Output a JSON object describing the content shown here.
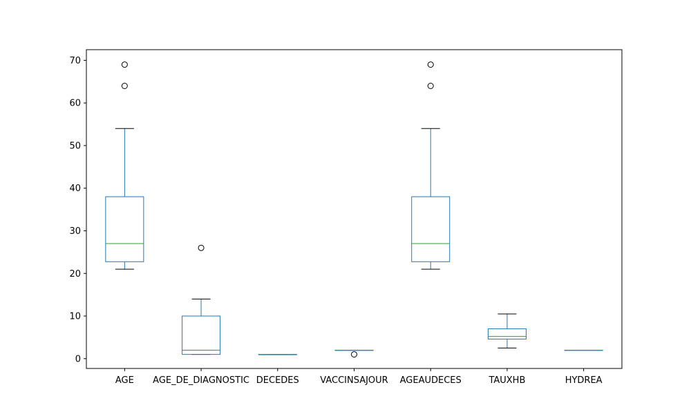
{
  "chart_data": {
    "type": "box",
    "title": "",
    "xlabel": "",
    "ylabel": "",
    "ylim": [
      -2.3,
      72.5
    ],
    "yticks": [
      0,
      10,
      20,
      30,
      40,
      50,
      60,
      70
    ],
    "grid": false,
    "categories": [
      "AGE",
      "AGE_DE_DIAGNOSTIC",
      "DECEDES",
      "VACCINSAJOUR",
      "AGEAUDECES",
      "TAUXHB",
      "HYDREA"
    ],
    "boxes": [
      {
        "whisker_low": 21,
        "q1": 22.75,
        "median": 27,
        "q3": 38,
        "whisker_high": 54,
        "outliers": [
          64,
          69
        ]
      },
      {
        "whisker_low": 1,
        "q1": 1,
        "median": 2,
        "q3": 10,
        "whisker_high": 14,
        "outliers": [
          26
        ]
      },
      {
        "whisker_low": 1,
        "q1": 1,
        "median": 1,
        "q3": 1,
        "whisker_high": 1,
        "outliers": []
      },
      {
        "whisker_low": 2,
        "q1": 2,
        "median": 2,
        "q3": 2,
        "whisker_high": 2,
        "outliers": [
          1
        ]
      },
      {
        "whisker_low": 21,
        "q1": 22.75,
        "median": 27,
        "q3": 38,
        "whisker_high": 54,
        "outliers": [
          64,
          69
        ]
      },
      {
        "whisker_low": 2.5,
        "q1": 4.6,
        "median": 5.2,
        "q3": 7,
        "whisker_high": 10.5,
        "outliers": []
      },
      {
        "whisker_low": 2,
        "q1": 2,
        "median": 2,
        "q3": 2,
        "whisker_high": 2,
        "outliers": []
      }
    ],
    "colors": {
      "box": "#1f77b4",
      "median": "#2ca02c",
      "cap": "#000000",
      "outlier": "#000000",
      "axes": "#000000"
    }
  }
}
